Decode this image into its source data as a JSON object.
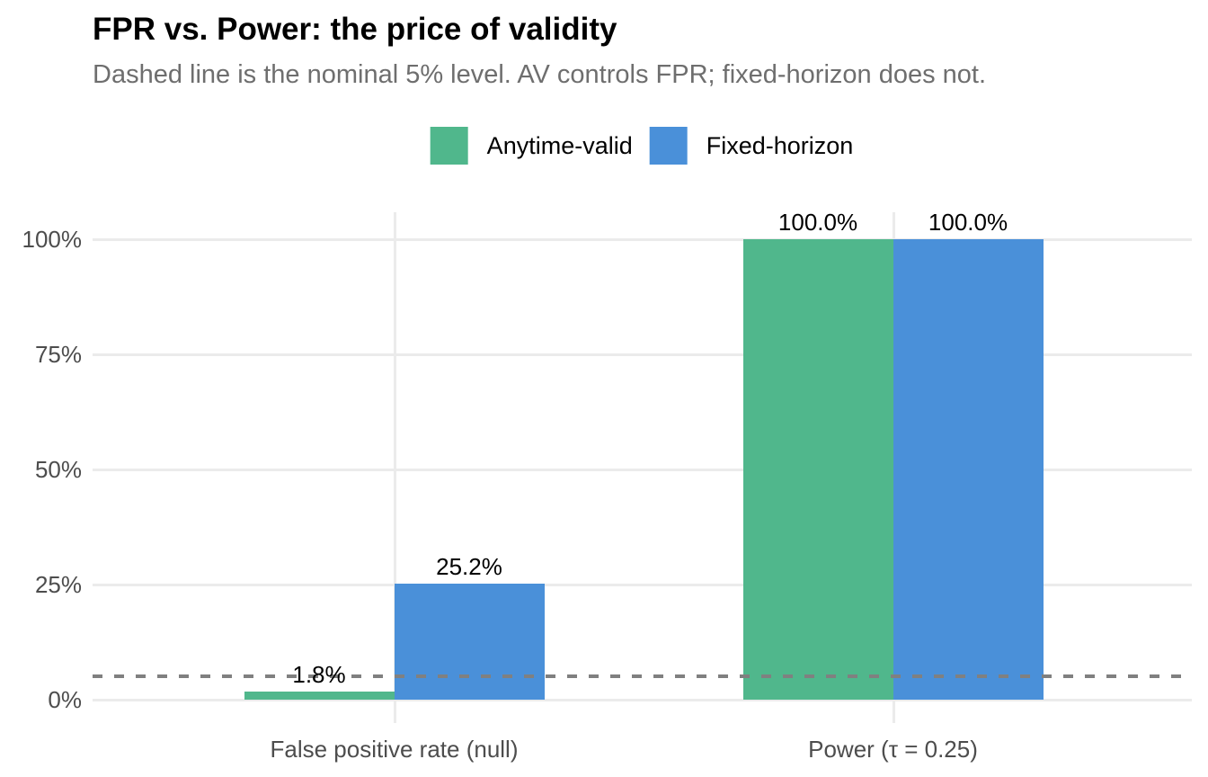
{
  "chart_data": {
    "type": "bar",
    "title": "FPR vs. Power: the price of validity",
    "subtitle": "Dashed line is the nominal 5% level. AV controls FPR; fixed-horizon does not.",
    "categories": [
      "False positive rate (null)",
      "Power (τ = 0.25)"
    ],
    "series": [
      {
        "name": "Anytime-valid",
        "color": "#50b78c",
        "values": [
          1.8,
          100.0
        ],
        "value_labels": [
          "1.8%",
          "100.0%"
        ]
      },
      {
        "name": "Fixed-horizon",
        "color": "#4a90d9",
        "values": [
          25.2,
          100.0
        ],
        "value_labels": [
          "25.2%",
          "100.0%"
        ]
      }
    ],
    "xlabel": "",
    "ylabel": "",
    "ylim": [
      0,
      100
    ],
    "yticks": [
      {
        "value": 0,
        "label": "0%"
      },
      {
        "value": 25,
        "label": "25%"
      },
      {
        "value": 50,
        "label": "50%"
      },
      {
        "value": 75,
        "label": "75%"
      },
      {
        "value": 100,
        "label": "100%"
      }
    ],
    "reference_line": {
      "value": 5,
      "style": "dashed",
      "meaning": "nominal 5% level"
    },
    "legend_position": "top-center",
    "grid": true,
    "colors": {
      "grid": "#ebebeb",
      "reference": "#808080",
      "axis_text": "#4d4d4d",
      "subtitle_text": "#6e6e6e",
      "title_text": "#000000",
      "value_label_text": "#000000",
      "background": "#ffffff"
    }
  }
}
